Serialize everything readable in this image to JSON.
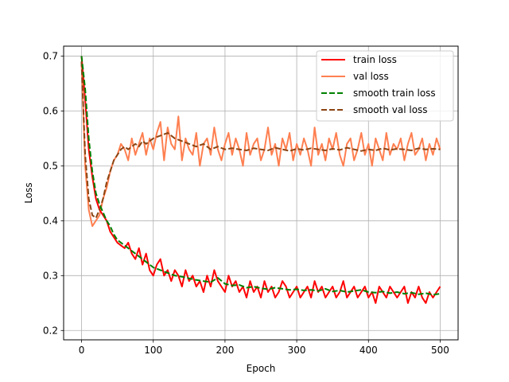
{
  "chart_data": {
    "type": "line",
    "title": "",
    "xlabel": "Epoch",
    "ylabel": "Loss",
    "xlim": [
      -25,
      525
    ],
    "ylim": [
      0.183,
      0.718
    ],
    "xticks": [
      0,
      100,
      200,
      300,
      400,
      500
    ],
    "yticks": [
      0.2,
      0.3,
      0.4,
      0.5,
      0.6,
      0.7
    ],
    "grid": true,
    "legend_position": "top-right",
    "series": [
      {
        "name": "train loss",
        "color": "#ff0000",
        "style": "solid",
        "x": [
          0,
          5,
          10,
          15,
          20,
          25,
          30,
          35,
          40,
          45,
          50,
          55,
          60,
          65,
          70,
          75,
          80,
          85,
          90,
          95,
          100,
          105,
          110,
          115,
          120,
          125,
          130,
          135,
          140,
          145,
          150,
          155,
          160,
          165,
          170,
          175,
          180,
          185,
          190,
          195,
          200,
          205,
          210,
          215,
          220,
          225,
          230,
          235,
          240,
          245,
          250,
          255,
          260,
          265,
          270,
          275,
          280,
          285,
          290,
          295,
          300,
          305,
          310,
          315,
          320,
          325,
          330,
          335,
          340,
          345,
          350,
          355,
          360,
          365,
          370,
          375,
          380,
          385,
          390,
          395,
          400,
          405,
          410,
          415,
          420,
          425,
          430,
          435,
          440,
          445,
          450,
          455,
          460,
          465,
          470,
          475,
          480,
          485,
          490,
          495,
          500
        ],
        "y": [
          0.7,
          0.62,
          0.53,
          0.48,
          0.44,
          0.42,
          0.41,
          0.4,
          0.38,
          0.37,
          0.36,
          0.355,
          0.35,
          0.36,
          0.34,
          0.33,
          0.35,
          0.32,
          0.34,
          0.31,
          0.3,
          0.32,
          0.33,
          0.3,
          0.31,
          0.29,
          0.31,
          0.3,
          0.28,
          0.31,
          0.29,
          0.3,
          0.28,
          0.29,
          0.27,
          0.3,
          0.28,
          0.31,
          0.29,
          0.28,
          0.27,
          0.3,
          0.28,
          0.29,
          0.27,
          0.28,
          0.26,
          0.29,
          0.27,
          0.28,
          0.26,
          0.29,
          0.27,
          0.28,
          0.26,
          0.27,
          0.29,
          0.28,
          0.26,
          0.27,
          0.28,
          0.26,
          0.27,
          0.28,
          0.26,
          0.29,
          0.27,
          0.28,
          0.26,
          0.27,
          0.28,
          0.26,
          0.27,
          0.29,
          0.26,
          0.27,
          0.28,
          0.26,
          0.27,
          0.28,
          0.26,
          0.27,
          0.25,
          0.28,
          0.27,
          0.26,
          0.28,
          0.27,
          0.26,
          0.27,
          0.28,
          0.25,
          0.27,
          0.26,
          0.28,
          0.26,
          0.25,
          0.27,
          0.26,
          0.27,
          0.28
        ]
      },
      {
        "name": "val loss",
        "color": "#ff7f50",
        "style": "solid",
        "x": [
          0,
          5,
          10,
          15,
          20,
          25,
          30,
          35,
          40,
          45,
          50,
          55,
          60,
          65,
          70,
          75,
          80,
          85,
          90,
          95,
          100,
          105,
          110,
          115,
          120,
          125,
          130,
          135,
          140,
          145,
          150,
          155,
          160,
          165,
          170,
          175,
          180,
          185,
          190,
          195,
          200,
          205,
          210,
          215,
          220,
          225,
          230,
          235,
          240,
          245,
          250,
          255,
          260,
          265,
          270,
          275,
          280,
          285,
          290,
          295,
          300,
          305,
          310,
          315,
          320,
          325,
          330,
          335,
          340,
          345,
          350,
          355,
          360,
          365,
          370,
          375,
          380,
          385,
          390,
          395,
          400,
          405,
          410,
          415,
          420,
          425,
          430,
          435,
          440,
          445,
          450,
          455,
          460,
          465,
          470,
          475,
          480,
          485,
          490,
          495,
          500
        ],
        "y": [
          0.69,
          0.5,
          0.42,
          0.39,
          0.4,
          0.41,
          0.44,
          0.46,
          0.49,
          0.51,
          0.52,
          0.54,
          0.53,
          0.51,
          0.55,
          0.52,
          0.54,
          0.56,
          0.52,
          0.55,
          0.53,
          0.56,
          0.58,
          0.51,
          0.57,
          0.54,
          0.53,
          0.59,
          0.51,
          0.55,
          0.53,
          0.52,
          0.56,
          0.5,
          0.54,
          0.55,
          0.52,
          0.57,
          0.53,
          0.51,
          0.54,
          0.56,
          0.52,
          0.55,
          0.53,
          0.5,
          0.56,
          0.52,
          0.54,
          0.55,
          0.51,
          0.53,
          0.57,
          0.52,
          0.54,
          0.5,
          0.55,
          0.53,
          0.56,
          0.51,
          0.54,
          0.52,
          0.55,
          0.53,
          0.5,
          0.57,
          0.52,
          0.54,
          0.51,
          0.55,
          0.53,
          0.56,
          0.52,
          0.5,
          0.54,
          0.55,
          0.51,
          0.53,
          0.56,
          0.52,
          0.54,
          0.5,
          0.55,
          0.53,
          0.51,
          0.56,
          0.52,
          0.54,
          0.53,
          0.55,
          0.51,
          0.54,
          0.56,
          0.52,
          0.53,
          0.55,
          0.51,
          0.54,
          0.52,
          0.55,
          0.53
        ]
      },
      {
        "name": "smooth train loss",
        "color": "#008000",
        "style": "dashed",
        "x": [
          0,
          5,
          10,
          15,
          20,
          25,
          30,
          35,
          40,
          45,
          50,
          55,
          60,
          65,
          70,
          75,
          80,
          85,
          90,
          95,
          100,
          110,
          120,
          130,
          140,
          150,
          160,
          170,
          180,
          190,
          200,
          210,
          220,
          230,
          240,
          250,
          260,
          270,
          280,
          290,
          300,
          310,
          320,
          330,
          340,
          350,
          360,
          370,
          380,
          390,
          400,
          410,
          420,
          430,
          440,
          450,
          460,
          470,
          480,
          490,
          500
        ],
        "y": [
          0.7,
          0.64,
          0.55,
          0.49,
          0.45,
          0.43,
          0.415,
          0.4,
          0.39,
          0.375,
          0.365,
          0.36,
          0.355,
          0.35,
          0.345,
          0.34,
          0.335,
          0.33,
          0.325,
          0.32,
          0.315,
          0.31,
          0.305,
          0.3,
          0.298,
          0.295,
          0.292,
          0.29,
          0.288,
          0.296,
          0.285,
          0.282,
          0.283,
          0.278,
          0.28,
          0.277,
          0.275,
          0.278,
          0.276,
          0.274,
          0.275,
          0.273,
          0.274,
          0.272,
          0.276,
          0.271,
          0.273,
          0.27,
          0.272,
          0.274,
          0.27,
          0.269,
          0.271,
          0.268,
          0.27,
          0.267,
          0.269,
          0.266,
          0.268,
          0.265,
          0.267
        ]
      },
      {
        "name": "smooth val loss",
        "color": "#8b4513",
        "style": "dashed",
        "x": [
          0,
          5,
          10,
          15,
          20,
          25,
          30,
          35,
          40,
          45,
          50,
          55,
          60,
          65,
          70,
          75,
          80,
          85,
          90,
          95,
          100,
          110,
          120,
          130,
          140,
          150,
          160,
          170,
          180,
          190,
          200,
          210,
          220,
          230,
          240,
          250,
          260,
          270,
          280,
          290,
          300,
          310,
          320,
          330,
          340,
          350,
          360,
          370,
          380,
          390,
          400,
          410,
          420,
          430,
          440,
          450,
          460,
          470,
          480,
          490,
          500
        ],
        "y": [
          0.69,
          0.52,
          0.44,
          0.41,
          0.405,
          0.42,
          0.44,
          0.47,
          0.49,
          0.51,
          0.52,
          0.53,
          0.535,
          0.53,
          0.535,
          0.54,
          0.535,
          0.545,
          0.54,
          0.545,
          0.55,
          0.555,
          0.56,
          0.55,
          0.545,
          0.54,
          0.535,
          0.54,
          0.53,
          0.535,
          0.53,
          0.532,
          0.53,
          0.528,
          0.532,
          0.53,
          0.528,
          0.533,
          0.53,
          0.527,
          0.531,
          0.529,
          0.532,
          0.53,
          0.528,
          0.531,
          0.529,
          0.533,
          0.53,
          0.527,
          0.53,
          0.528,
          0.532,
          0.529,
          0.531,
          0.53,
          0.528,
          0.532,
          0.53,
          0.531,
          0.53
        ]
      }
    ]
  }
}
